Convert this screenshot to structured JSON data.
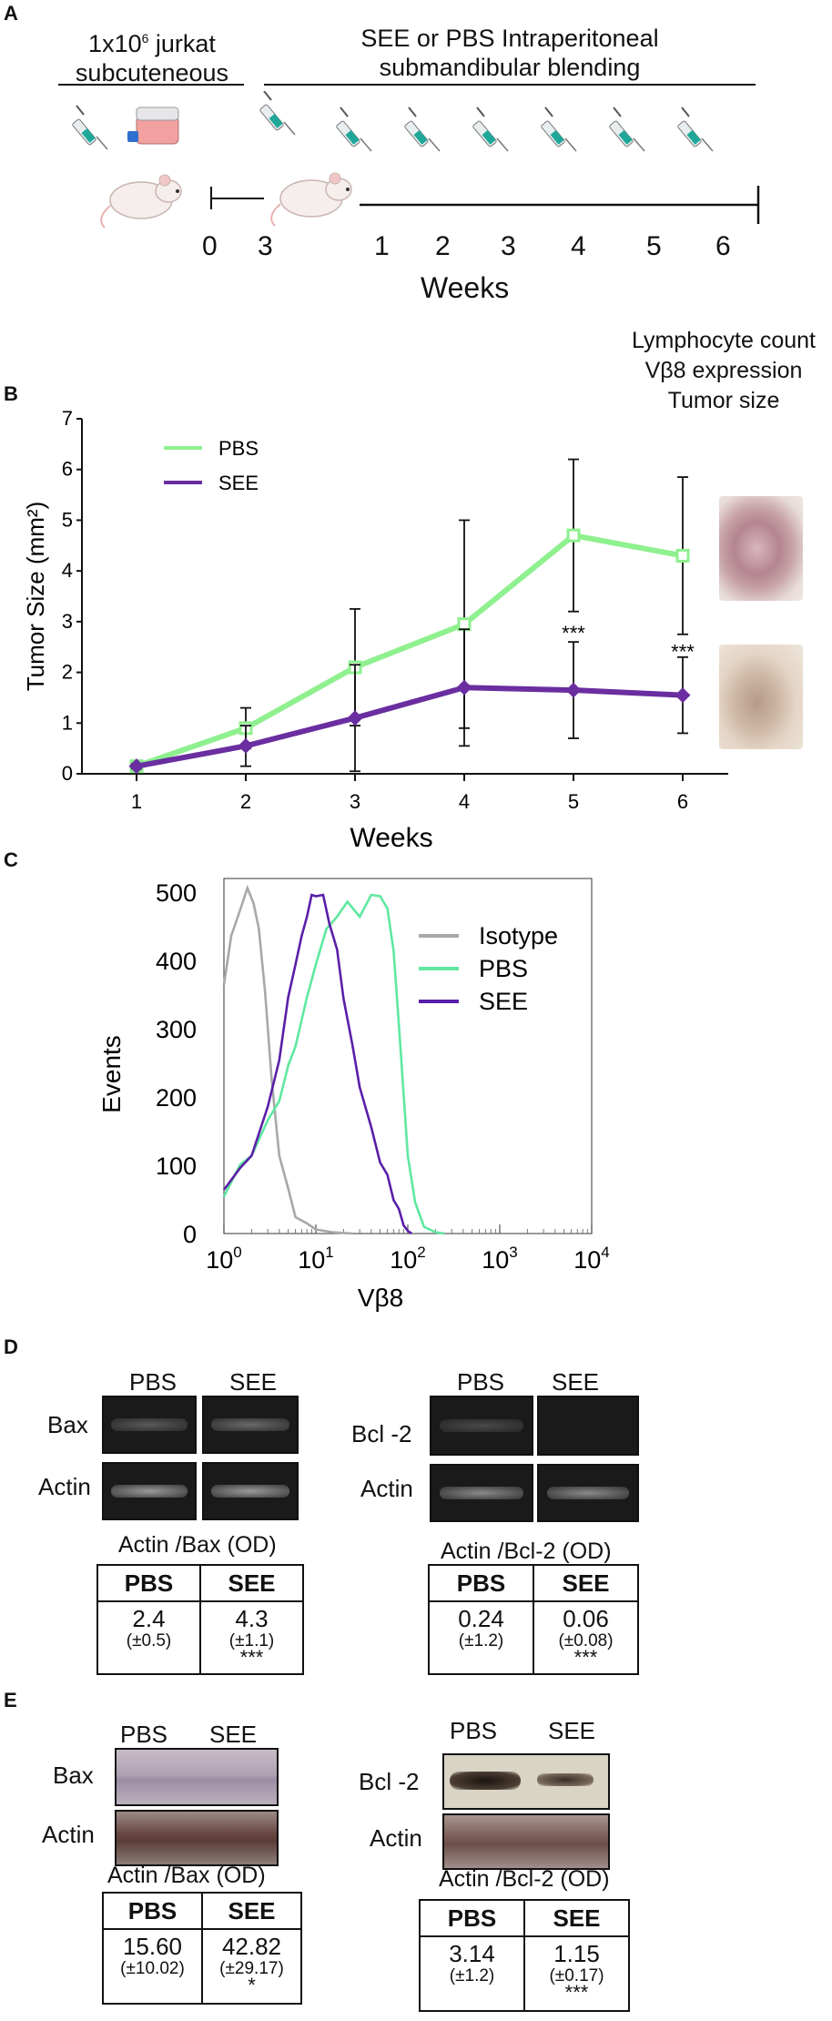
{
  "colors": {
    "pbs": "#8ef08e",
    "see": "#6a2ea0",
    "isotype": "#a8a8a8",
    "pbs_hist": "#5fe8a0",
    "see_hist": "#5a1fa8"
  },
  "panelA": {
    "letter": "A",
    "left_header_line1": "1x10",
    "left_header_sup": "6",
    "left_header_line1_suffix": " jurkat",
    "left_header_line2": "subcuteneous",
    "right_header_line1": "SEE or PBS Intraperitoneal",
    "right_header_line2": "submandibular blending",
    "timeline_labels": [
      "0",
      "3",
      "1",
      "2",
      "3",
      "4",
      "5",
      "6"
    ],
    "weeks_label": "Weeks",
    "readouts": [
      "Lymphocyte count",
      "Vβ8 expression",
      "Tumor size"
    ]
  },
  "panelB": {
    "letter": "B"
  },
  "panelC": {
    "letter": "C"
  },
  "panelD": {
    "letter": "D",
    "left": {
      "lanes": [
        "PBS",
        "SEE"
      ],
      "rows": [
        "Bax",
        "Actin"
      ],
      "title": "Actin /Bax (OD)",
      "headers": [
        "PBS",
        "SEE"
      ],
      "values": [
        "2.4",
        "4.3"
      ],
      "sds": [
        "(±0.5)",
        "(±1.1)"
      ],
      "stars": [
        "",
        "***"
      ]
    },
    "right": {
      "lanes": [
        "PBS",
        "SEE"
      ],
      "rows": [
        "Bcl -2",
        "Actin"
      ],
      "title": "Actin /Bcl-2 (OD)",
      "headers": [
        "PBS",
        "SEE"
      ],
      "values": [
        "0.24",
        "0.06"
      ],
      "sds": [
        "(±1.2)",
        "(±0.08)"
      ],
      "stars": [
        "",
        "***"
      ]
    }
  },
  "panelE": {
    "letter": "E",
    "left": {
      "lanes": [
        "PBS",
        "SEE"
      ],
      "rows": [
        "Bax",
        "Actin"
      ],
      "title": "Actin /Bax (OD)",
      "headers": [
        "PBS",
        "SEE"
      ],
      "values": [
        "15.60",
        "42.82"
      ],
      "sds": [
        "(±10.02)",
        "(±29.17)"
      ],
      "stars": [
        "",
        "*"
      ]
    },
    "right": {
      "lanes": [
        "PBS",
        "SEE"
      ],
      "rows": [
        "Bcl -2",
        "Actin"
      ],
      "title": "Actin /Bcl-2 (OD)",
      "headers": [
        "PBS",
        "SEE"
      ],
      "values": [
        "3.14",
        "1.15"
      ],
      "sds": [
        "(±1.2)",
        "(±0.17)"
      ],
      "stars": [
        "",
        "***"
      ]
    }
  },
  "chart_data": [
    {
      "type": "line",
      "title": "",
      "xlabel": "Weeks",
      "ylabel": "Tumor Size (mm²)",
      "categories": [
        "1",
        "2",
        "3",
        "4",
        "5",
        "6"
      ],
      "ylim": [
        0,
        7
      ],
      "yticks": [
        "0",
        "1",
        "2",
        "3",
        "4",
        "5",
        "6",
        "7"
      ],
      "series": [
        {
          "name": "PBS",
          "values": [
            0.15,
            0.9,
            2.1,
            2.95,
            4.7,
            4.3
          ],
          "err": [
            0.05,
            0.4,
            1.15,
            2.05,
            1.5,
            1.55
          ]
        },
        {
          "name": "SEE",
          "values": [
            0.15,
            0.55,
            1.1,
            1.7,
            1.65,
            1.55
          ],
          "err": [
            0.05,
            0.4,
            1.05,
            1.15,
            0.95,
            0.75
          ]
        }
      ],
      "annotations": [
        "***",
        "***"
      ]
    },
    {
      "type": "line",
      "title": "",
      "xlabel": "Vβ8",
      "ylabel": "Events",
      "xscale": "log",
      "xlim": [
        1,
        10000
      ],
      "ylim": [
        0,
        520
      ],
      "xticks": [
        {
          "base": "10",
          "exp": "0"
        },
        {
          "base": "10",
          "exp": "1"
        },
        {
          "base": "10",
          "exp": "2"
        },
        {
          "base": "10",
          "exp": "3"
        },
        {
          "base": "10",
          "exp": "4"
        }
      ],
      "yticks": [
        "0",
        "100",
        "200",
        "300",
        "400",
        "500"
      ],
      "series": [
        {
          "name": "Isotype",
          "x": [
            1,
            1.2,
            1.5,
            1.8,
            2.1,
            2.4,
            2.8,
            3.3,
            4,
            5,
            6,
            8,
            10,
            15,
            25
          ],
          "y": [
            370,
            430,
            480,
            500,
            490,
            440,
            360,
            220,
            120,
            60,
            30,
            15,
            6,
            2,
            0
          ]
        },
        {
          "name": "PBS",
          "x": [
            1,
            1.5,
            2,
            3,
            4,
            5,
            6,
            8,
            10,
            13,
            17,
            22,
            30,
            40,
            50,
            60,
            70,
            80,
            100,
            120,
            150,
            200,
            250
          ],
          "y": [
            60,
            95,
            120,
            160,
            200,
            240,
            280,
            340,
            400,
            440,
            470,
            480,
            470,
            490,
            500,
            470,
            420,
            300,
            120,
            40,
            10,
            2,
            0
          ]
        },
        {
          "name": "SEE",
          "x": [
            1,
            1.5,
            2,
            3,
            4,
            5,
            6,
            7,
            8,
            9,
            10,
            12,
            14,
            17,
            20,
            25,
            30,
            40,
            50,
            60,
            70,
            80,
            90,
            100,
            110
          ],
          "y": [
            70,
            90,
            120,
            180,
            260,
            340,
            400,
            430,
            470,
            490,
            500,
            490,
            460,
            410,
            350,
            270,
            220,
            150,
            110,
            80,
            55,
            30,
            12,
            4,
            0
          ]
        }
      ]
    }
  ]
}
